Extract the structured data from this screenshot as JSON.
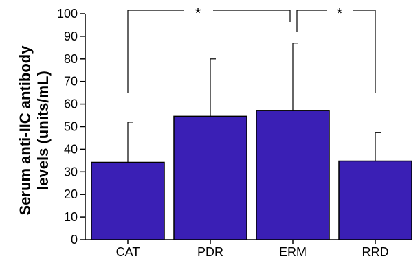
{
  "chart_data": {
    "type": "bar",
    "categories": [
      "CAT",
      "PDR",
      "ERM",
      "RRD"
    ],
    "values": [
      34.2,
      54.6,
      57.2,
      34.8
    ],
    "error_upper": [
      52,
      80,
      87,
      47.5
    ],
    "ylabel_lines": [
      "Serum anti-IIC antibody",
      "levels (units/mL)"
    ],
    "ylim": [
      0,
      100
    ],
    "yticks": [
      0,
      10,
      20,
      30,
      40,
      50,
      60,
      70,
      80,
      90,
      100
    ],
    "bar_color": "#3a1fb5",
    "grid": false,
    "significance": [
      {
        "groups": [
          "CAT",
          "ERM"
        ],
        "label": "*"
      },
      {
        "groups": [
          "ERM",
          "RRD"
        ],
        "label": "*"
      }
    ]
  }
}
